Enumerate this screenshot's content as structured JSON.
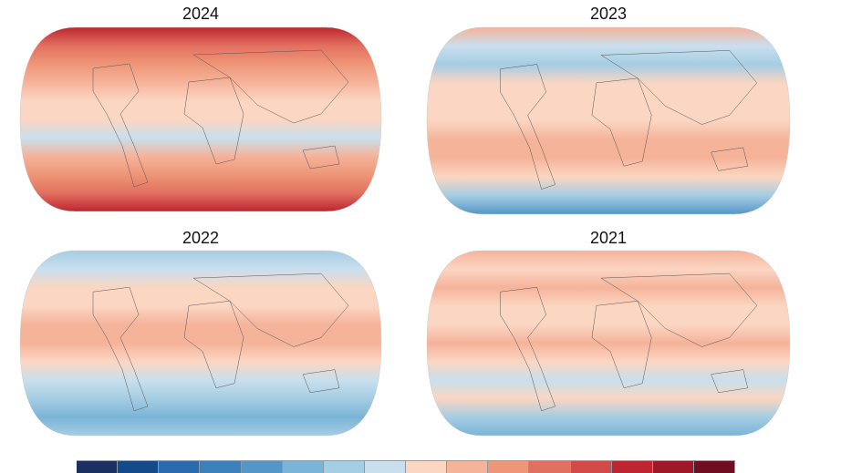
{
  "maps": [
    {
      "title": "2024",
      "stops": [
        "#be2530",
        "#e27060",
        "#ee9677",
        "#f5b39a",
        "#fbd6c2",
        "#fbd6c2",
        "#c9dfee",
        "#f5b39a",
        "#ee9677",
        "#e27060",
        "#be2530"
      ]
    },
    {
      "title": "2023",
      "stops": [
        "#f5b39a",
        "#c9dfee",
        "#a5cde3",
        "#fbd6c2",
        "#fbd6c2",
        "#fbd6c2",
        "#f5b39a",
        "#f5b39a",
        "#fbd6c2",
        "#a5cde3",
        "#5596c8"
      ]
    },
    {
      "title": "2022",
      "stops": [
        "#a5cde3",
        "#c9dfee",
        "#fbd6c2",
        "#fbd6c2",
        "#f5b39a",
        "#f5b39a",
        "#fbd6c2",
        "#c9dfee",
        "#a5cde3",
        "#7ab4d6",
        "#a5cde3"
      ]
    },
    {
      "title": "2021",
      "stops": [
        "#f5b39a",
        "#fbd6c2",
        "#f5b39a",
        "#fbd6c2",
        "#fbd6c2",
        "#f5b39a",
        "#fbd6c2",
        "#c9dfee",
        "#fbd6c2",
        "#a5cde3",
        "#7ab4d6"
      ]
    }
  ],
  "colorbar": [
    "#1a3060",
    "#144a8a",
    "#2a6aae",
    "#3b80ba",
    "#5596c8",
    "#7ab4d6",
    "#a5cde3",
    "#c9dfee",
    "#fbd6c2",
    "#f5b39a",
    "#ee9677",
    "#e27060",
    "#d24a48",
    "#be2530",
    "#9e1828",
    "#6e0e20"
  ]
}
